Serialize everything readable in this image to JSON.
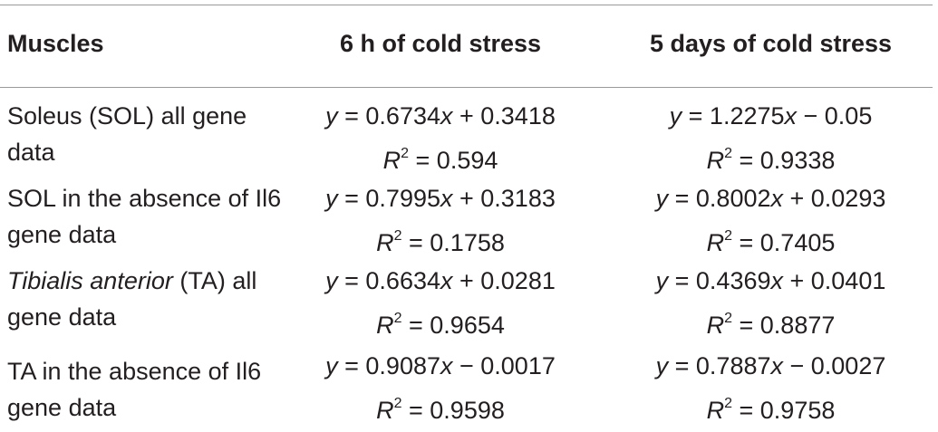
{
  "header": {
    "muscles": "Muscles",
    "col1": "6 h of cold stress",
    "col2": "5 days of cold stress"
  },
  "rows": [
    {
      "muscle_lines": [
        "Soleus (SOL) all gene",
        "data"
      ],
      "c1": {
        "eq_y": "y",
        "eq_rhs1": " = 0.6734",
        "eq_x": "x",
        "eq_rhs2": " + 0.3418",
        "r2_val": " = 0.594"
      },
      "c2": {
        "eq_y": "y",
        "eq_rhs1": " = 1.2275",
        "eq_x": "x",
        "eq_rhs2": " − 0.05",
        "r2_val": " = 0.9338"
      }
    },
    {
      "muscle_lines": [
        "SOL in the absence of Il6",
        "gene data"
      ],
      "c1": {
        "eq_y": "y",
        "eq_rhs1": " = 0.7995",
        "eq_x": "x",
        "eq_rhs2": " + 0.3183",
        "r2_val": " = 0.1758"
      },
      "c2": {
        "eq_y": "y",
        "eq_rhs1": " = 0.8002",
        "eq_x": "x",
        "eq_rhs2": " + 0.0293",
        "r2_val": " = 0.7405"
      }
    },
    {
      "muscle_italic": "Tibialis anterior",
      "muscle_rest": " (TA) all",
      "muscle_line2": "gene data",
      "c1": {
        "eq_y": "y",
        "eq_rhs1": " = 0.6634",
        "eq_x": "x",
        "eq_rhs2": " + 0.0281",
        "r2_val": " = 0.9654"
      },
      "c2": {
        "eq_y": "y",
        "eq_rhs1": " = 0.4369",
        "eq_x": "x",
        "eq_rhs2": " + 0.0401",
        "r2_val": " = 0.8877"
      }
    },
    {
      "muscle_lines": [
        "TA in the absence of Il6",
        "gene data"
      ],
      "c1": {
        "eq_y": "y",
        "eq_rhs1": " = 0.9087",
        "eq_x": "x",
        "eq_rhs2": " − 0.0017",
        "r2_val": " = 0.9598"
      },
      "c2": {
        "eq_y": "y",
        "eq_rhs1": " = 0.7887",
        "eq_x": "x",
        "eq_rhs2": " − 0.0027",
        "r2_val": " = 0.9758"
      }
    }
  ],
  "r2_symbol": {
    "letter": "R",
    "exp": "2"
  }
}
